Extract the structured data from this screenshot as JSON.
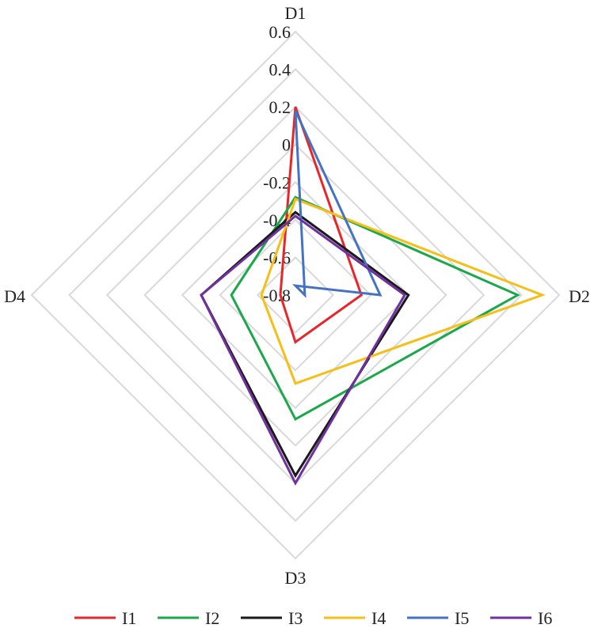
{
  "chart_data": {
    "type": "radar",
    "axes": [
      "D1",
      "D2",
      "D3",
      "D4"
    ],
    "r_ticks": [
      "0.6",
      "0.4",
      "0.2",
      "0",
      "-0.2",
      "-0.4",
      "-0.6",
      "-0.8"
    ],
    "r_range": [
      -0.8,
      0.6
    ],
    "grid": true,
    "legend_position": "bottom",
    "series": [
      {
        "name": "I1",
        "color": "#e8262a",
        "values": [
          0.2,
          -0.45,
          -0.55,
          -0.72
        ]
      },
      {
        "name": "I2",
        "color": "#1aa84b",
        "values": [
          -0.28,
          0.38,
          -0.14,
          -0.46
        ]
      },
      {
        "name": "I3",
        "color": "#1a1a1a",
        "values": [
          -0.36,
          -0.2,
          0.16,
          -0.3
        ]
      },
      {
        "name": "I4",
        "color": "#f7be17",
        "values": [
          -0.29,
          0.51,
          -0.33,
          -0.62
        ]
      },
      {
        "name": "I5",
        "color": "#4472c4",
        "values": [
          0.18,
          -0.35,
          -0.85,
          -0.85
        ]
      },
      {
        "name": "I6",
        "color": "#7030a0",
        "values": [
          -0.38,
          -0.22,
          0.2,
          -0.3
        ]
      }
    ]
  }
}
